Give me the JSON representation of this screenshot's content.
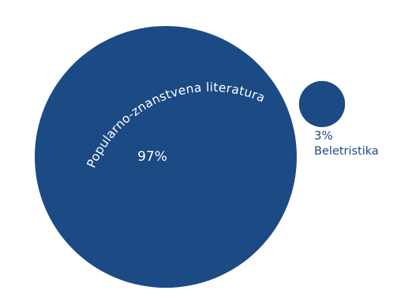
{
  "chart_data": {
    "type": "area-proportional circles",
    "title": "",
    "series": [
      {
        "name": "Popularno-znanstvena literatura",
        "value": 97,
        "value_label": "97%",
        "color": "#1b4a84"
      },
      {
        "name": "Beletristika",
        "value": 3,
        "value_label": "3%",
        "color": "#1b4a84"
      }
    ],
    "unit": "%",
    "grid": false,
    "legend": "none"
  }
}
